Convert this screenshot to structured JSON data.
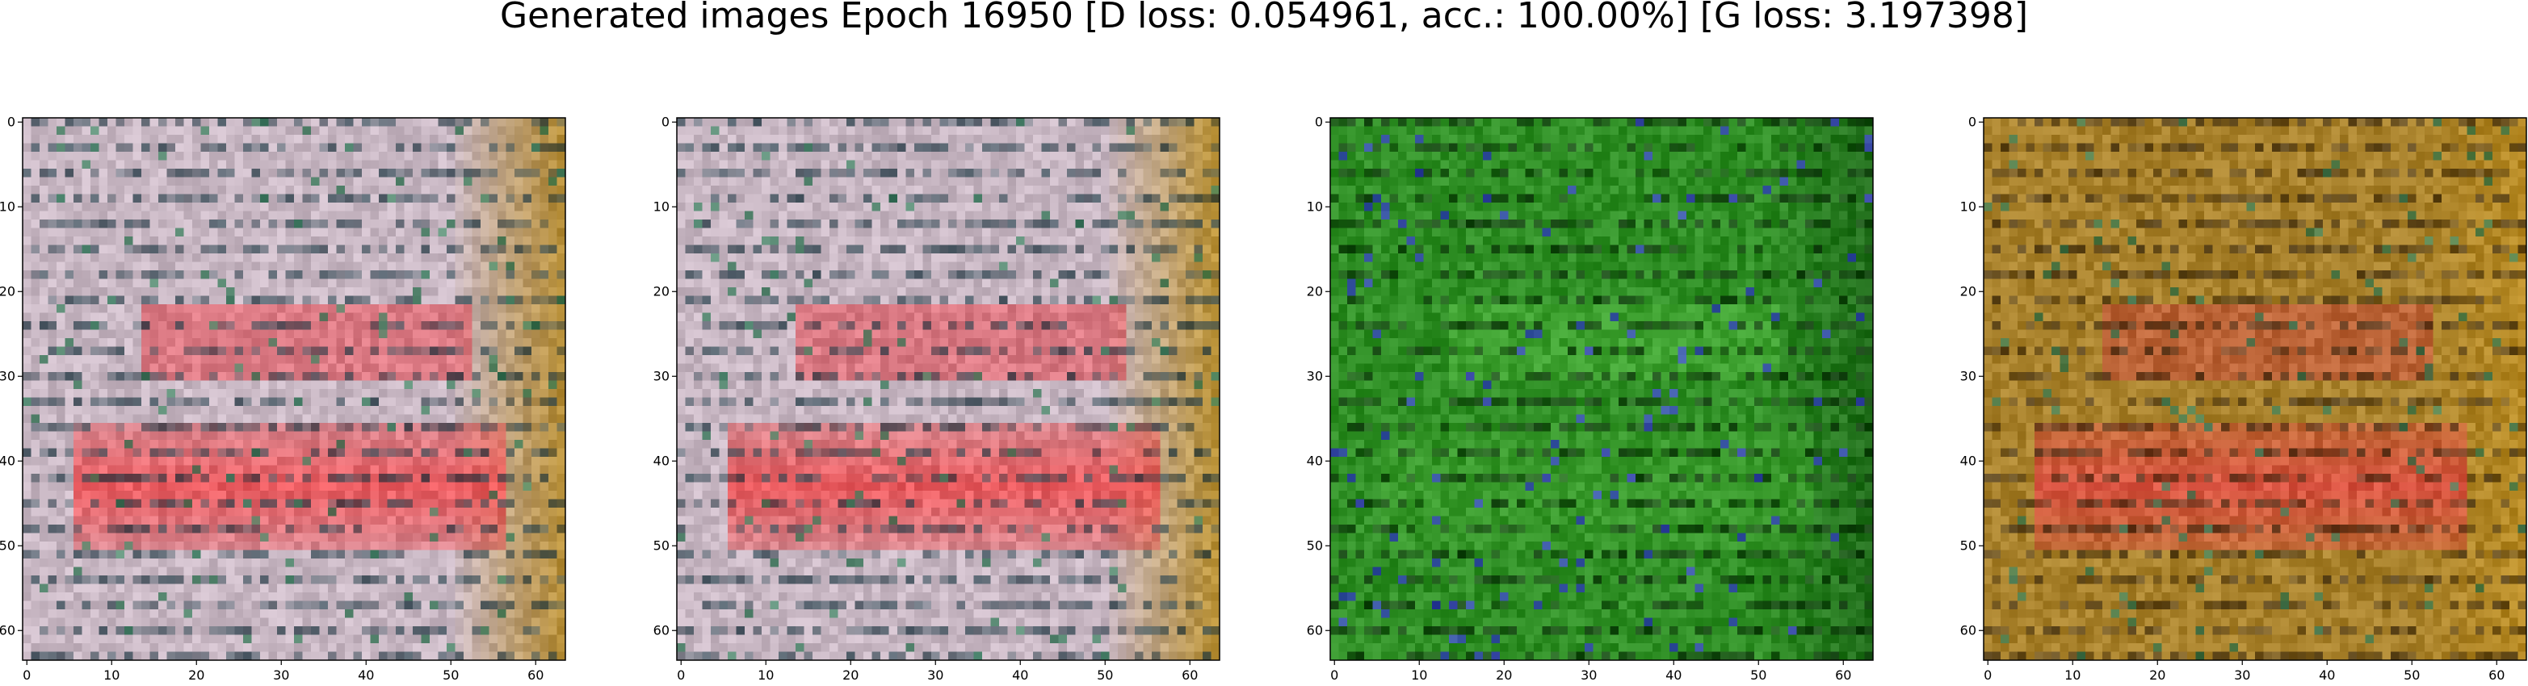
{
  "figure": {
    "title": "Generated images Epoch 16950 [D loss: 0.054961, acc.: 100.00%] [G loss: 3.197398]"
  },
  "chart_data": [
    {
      "type": "heatmap",
      "title": "",
      "xlabel": "",
      "ylabel": "",
      "xlim": [
        -0.5,
        63.5
      ],
      "ylim": [
        63.5,
        -0.5
      ],
      "xticks": [
        0,
        10,
        20,
        30,
        40,
        50,
        60
      ],
      "yticks": [
        0,
        10,
        20,
        30,
        40,
        50,
        60
      ],
      "grid": false,
      "base_color": "#c9b8c4",
      "edge_color": "#b58a2a",
      "blob_colors": {
        "large_band": "#f04a4e",
        "upper_band": "#e8505a",
        "dark_strokes": "#1f3a45",
        "accent": "#2e7a55"
      }
    },
    {
      "type": "heatmap",
      "title": "",
      "xlabel": "",
      "ylabel": "",
      "xlim": [
        -0.5,
        63.5
      ],
      "ylim": [
        63.5,
        -0.5
      ],
      "xticks": [
        0,
        10,
        20,
        30,
        40,
        50,
        60
      ],
      "yticks": [
        0,
        10,
        20,
        30,
        40,
        50,
        60
      ],
      "grid": false,
      "base_color": "#c8b7c3",
      "edge_color": "#b88e28",
      "blob_colors": {
        "large_band": "#ef4a4c",
        "upper_band": "#e65058",
        "dark_strokes": "#1f3a45",
        "accent": "#2e7a55"
      }
    },
    {
      "type": "heatmap",
      "title": "",
      "xlabel": "",
      "ylabel": "",
      "xlim": [
        -0.5,
        63.5
      ],
      "ylim": [
        63.5,
        -0.5
      ],
      "xticks": [
        0,
        10,
        20,
        30,
        40,
        50,
        60
      ],
      "yticks": [
        0,
        10,
        20,
        30,
        40,
        50,
        60
      ],
      "grid": false,
      "base_color": "#2f8f25",
      "edge_color": "#1f6b1a",
      "blob_colors": {
        "large_band": "#3a9c2c",
        "upper_band": "#46ab35",
        "dark_strokes": "#0e2a0e",
        "accent": "#3a3ad8"
      }
    },
    {
      "type": "heatmap",
      "title": "",
      "xlabel": "",
      "ylabel": "",
      "xlim": [
        -0.5,
        63.5
      ],
      "ylim": [
        63.5,
        -0.5
      ],
      "xticks": [
        0,
        10,
        20,
        30,
        40,
        50,
        60
      ],
      "yticks": [
        0,
        10,
        20,
        30,
        40,
        50,
        60
      ],
      "grid": false,
      "base_color": "#a9822c",
      "edge_color": "#b88a22",
      "blob_colors": {
        "large_band": "#e04a44",
        "upper_band": "#c9503e",
        "dark_strokes": "#3a2a14",
        "accent": "#2e7a55"
      }
    }
  ]
}
